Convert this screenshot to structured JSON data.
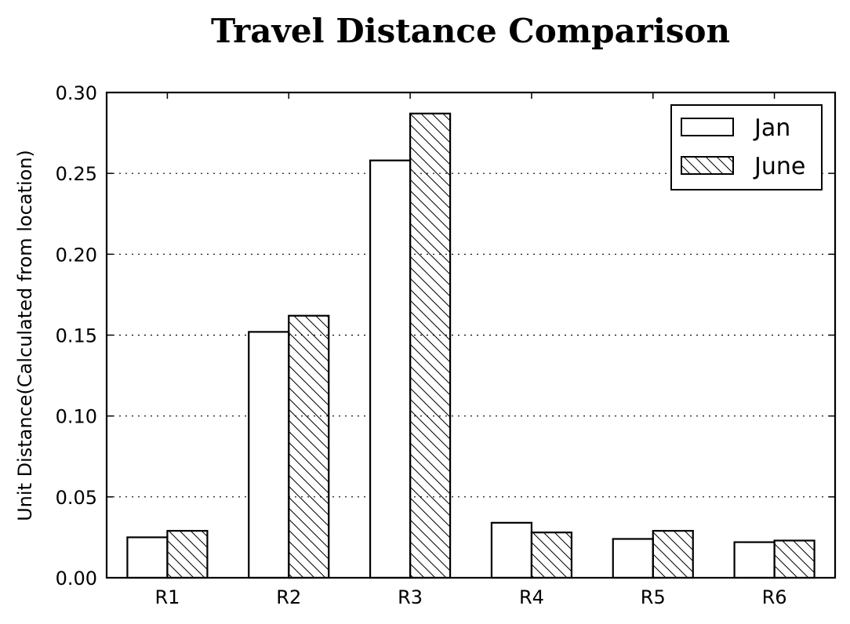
{
  "chart_data": {
    "type": "bar",
    "title": "Travel Distance Comparison",
    "xlabel": "",
    "ylabel": "Unit Distance(Calculated from location)",
    "categories": [
      "R1",
      "R2",
      "R3",
      "R4",
      "R5",
      "R6"
    ],
    "series": [
      {
        "name": "Jan",
        "values": [
          0.025,
          0.152,
          0.258,
          0.034,
          0.024,
          0.022
        ],
        "hatch": "none"
      },
      {
        "name": "June",
        "values": [
          0.029,
          0.162,
          0.287,
          0.028,
          0.029,
          0.023
        ],
        "hatch": "diagonal"
      }
    ],
    "ylim": [
      0,
      0.3
    ],
    "yticks": [
      "0.00",
      "0.05",
      "0.10",
      "0.15",
      "0.20",
      "0.25",
      "0.30"
    ],
    "grid": "horizontal-dotted",
    "legend_position": "top-right",
    "colors": {
      "bar_fill": "#ffffff",
      "bar_edge": "#000000",
      "grid": "#000000"
    }
  }
}
